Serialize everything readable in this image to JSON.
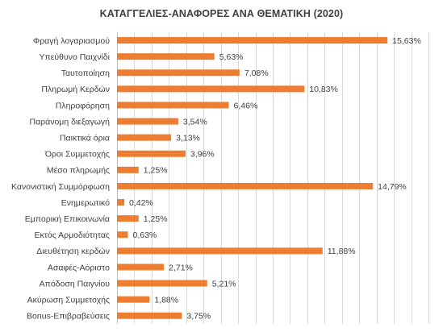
{
  "chart_data": {
    "type": "bar",
    "orientation": "horizontal",
    "title": "ΚΑΤΑΓΓΕΛΙΕΣ-ΑΝΑΦΟΡΕΣ ΑΝΑ ΘΕΜΑΤΙΚΗ (2020)",
    "xlabel": "",
    "ylabel": "",
    "xlim": [
      0,
      18
    ],
    "grid": true,
    "legend": "none",
    "bar_color": "#ed7d31",
    "categories": [
      "Φραγή λογαριασμού",
      "Υπεύθυνο Παιχνίδι",
      "Ταυτοποίηση",
      "Πληρωμή Κερδών",
      "Πληροφόρηση",
      "Παράνομη διεξαγωγή",
      "Παικτικά όρια",
      "Όροι Συμμετοχής",
      "Μέσο πληρωμής",
      "Κανονιστική Συμμόρφωση",
      "Ενημερωτικό",
      "Εμπορική Επικοινωνία",
      "Εκτός Αρμοδιότητας",
      "Διευθέτηση κερδών",
      "Ασαφές-Αόριστο",
      "Απόδοση Παιγνίου",
      "Ακύρωση Συμμετοχής",
      "Bonus-Επιβραβεύσεις"
    ],
    "values": [
      15.63,
      5.63,
      7.08,
      10.83,
      6.46,
      3.54,
      3.13,
      3.96,
      1.25,
      14.79,
      0.42,
      1.25,
      0.63,
      11.88,
      2.71,
      5.21,
      1.88,
      3.75
    ],
    "value_labels": [
      "15,63%",
      "5,63%",
      "7,08%",
      "10,83%",
      "6,46%",
      "3,54%",
      "3,13%",
      "3,96%",
      "1,25%",
      "14,79%",
      "0,42%",
      "1,25%",
      "0,63%",
      "11,88%",
      "2,71%",
      "5,21%",
      "1,88%",
      "3,75%"
    ]
  }
}
